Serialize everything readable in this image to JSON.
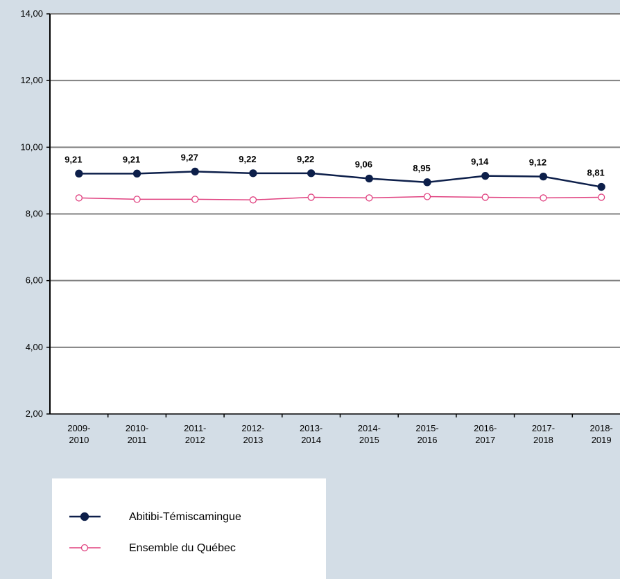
{
  "chart_data": {
    "type": "line",
    "categories": [
      [
        "2009-",
        "2010"
      ],
      [
        "2010-",
        "2011"
      ],
      [
        "2011-",
        "2012"
      ],
      [
        "2012-",
        "2013"
      ],
      [
        "2013-",
        "2014"
      ],
      [
        "2014-",
        "2015"
      ],
      [
        "2015-",
        "2016"
      ],
      [
        "2016-",
        "2017"
      ],
      [
        "2017-",
        "2018"
      ],
      [
        "2018-",
        "2019"
      ]
    ],
    "series": [
      {
        "name": "Abitibi-Témiscamingue",
        "color": "#0d1f4a",
        "marker": "filled",
        "values": [
          9.21,
          9.21,
          9.27,
          9.22,
          9.22,
          9.06,
          8.95,
          9.14,
          9.12,
          8.81
        ],
        "value_labels": [
          "9,21",
          "9,21",
          "9,27",
          "9,22",
          "9,22",
          "9,06",
          "8,95",
          "9,14",
          "9,12",
          "8,81"
        ]
      },
      {
        "name": "Ensemble du Québec",
        "color": "#e0407f",
        "marker": "hollow",
        "values": [
          8.48,
          8.44,
          8.44,
          8.42,
          8.5,
          8.48,
          8.52,
          8.5,
          8.48,
          8.5
        ]
      }
    ],
    "ylim": [
      2,
      14
    ],
    "yticks": [
      {
        "value": 2,
        "label": "2,00"
      },
      {
        "value": 4,
        "label": "4,00"
      },
      {
        "value": 6,
        "label": "6,00"
      },
      {
        "value": 8,
        "label": "8,00"
      },
      {
        "value": 10,
        "label": "10,00"
      },
      {
        "value": 12,
        "label": "12,00"
      },
      {
        "value": 14,
        "label": "14,00"
      }
    ],
    "grid": true
  }
}
